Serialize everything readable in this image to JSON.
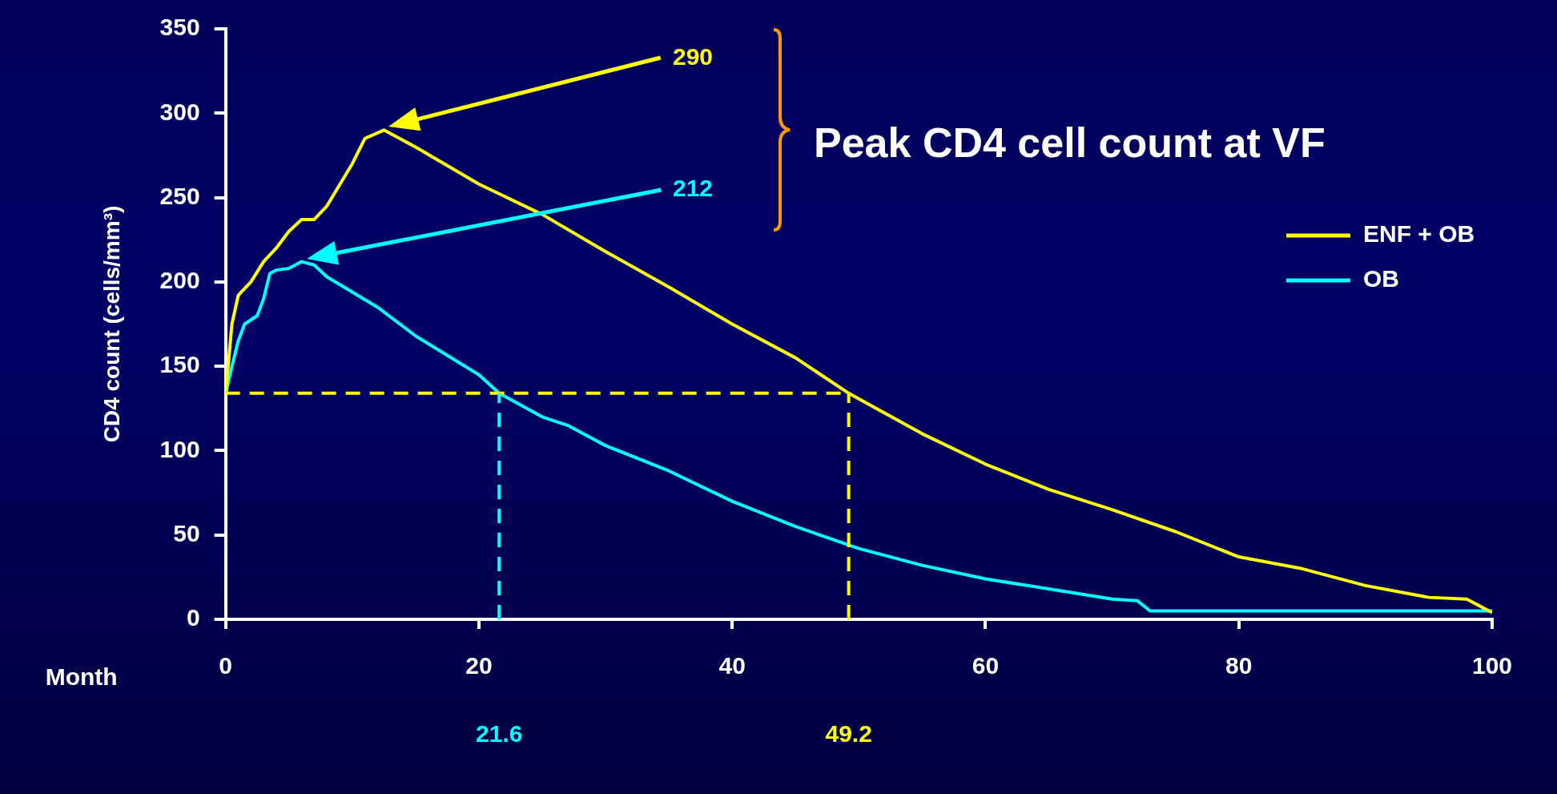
{
  "chart_data": {
    "type": "line",
    "xlabel": "Month",
    "ylabel": "CD4 count (cells/mm³)",
    "xlim": [
      0,
      100
    ],
    "xticks": [
      0,
      20,
      40,
      60,
      80,
      100
    ],
    "ylim": [
      0,
      350
    ],
    "yticks": [
      0,
      50,
      100,
      150,
      200,
      250,
      300,
      350
    ],
    "grid": false,
    "legend": "top right",
    "marker": "none",
    "line_style": "solid",
    "series": [
      {
        "name": "ENF + OB",
        "color": "#ffff00",
        "x": [
          0,
          0.5,
          1,
          2,
          3,
          4,
          5,
          6,
          7,
          8,
          10,
          11,
          12.5,
          15,
          20,
          25,
          30,
          35,
          40,
          45,
          49.2,
          55,
          60,
          65,
          70,
          75,
          80,
          85,
          90,
          95,
          98,
          100
        ],
        "values": [
          133,
          175,
          192,
          200,
          212,
          220,
          230,
          237,
          237,
          245,
          270,
          285,
          290,
          280,
          258,
          240,
          218,
          197,
          175,
          155,
          134,
          110,
          92,
          77,
          65,
          52,
          37,
          30,
          20,
          13,
          12,
          4
        ]
      },
      {
        "name": "OB",
        "color": "#00ffff",
        "x": [
          0,
          0.5,
          1,
          1.5,
          2.5,
          3,
          3.5,
          4,
          5,
          6,
          7,
          8,
          10,
          12,
          15,
          20,
          21.6,
          25,
          27,
          30,
          35,
          40,
          45,
          50,
          55,
          60,
          65,
          70,
          72,
          73,
          80,
          90,
          100
        ],
        "values": [
          133,
          150,
          165,
          175,
          180,
          190,
          205,
          207,
          208,
          212,
          210,
          203,
          194,
          185,
          168,
          145,
          134,
          120,
          115,
          103,
          88,
          70,
          55,
          42,
          32,
          24,
          18,
          12,
          11,
          5,
          5,
          5,
          5
        ]
      }
    ],
    "ref_lines": [
      {
        "axis": "y",
        "value": 134,
        "color": "#ffff00",
        "line_style": "dashed"
      },
      {
        "axis": "x",
        "value": 21.6,
        "label": "21.6",
        "color": "#00ffff",
        "line_style": "dashed"
      },
      {
        "axis": "x",
        "value": 49.2,
        "label": "49.2",
        "color": "#ffff00",
        "line_style": "dashed"
      }
    ],
    "annotations": [
      "290",
      "212",
      "Peak CD4 cell count at VF"
    ]
  }
}
